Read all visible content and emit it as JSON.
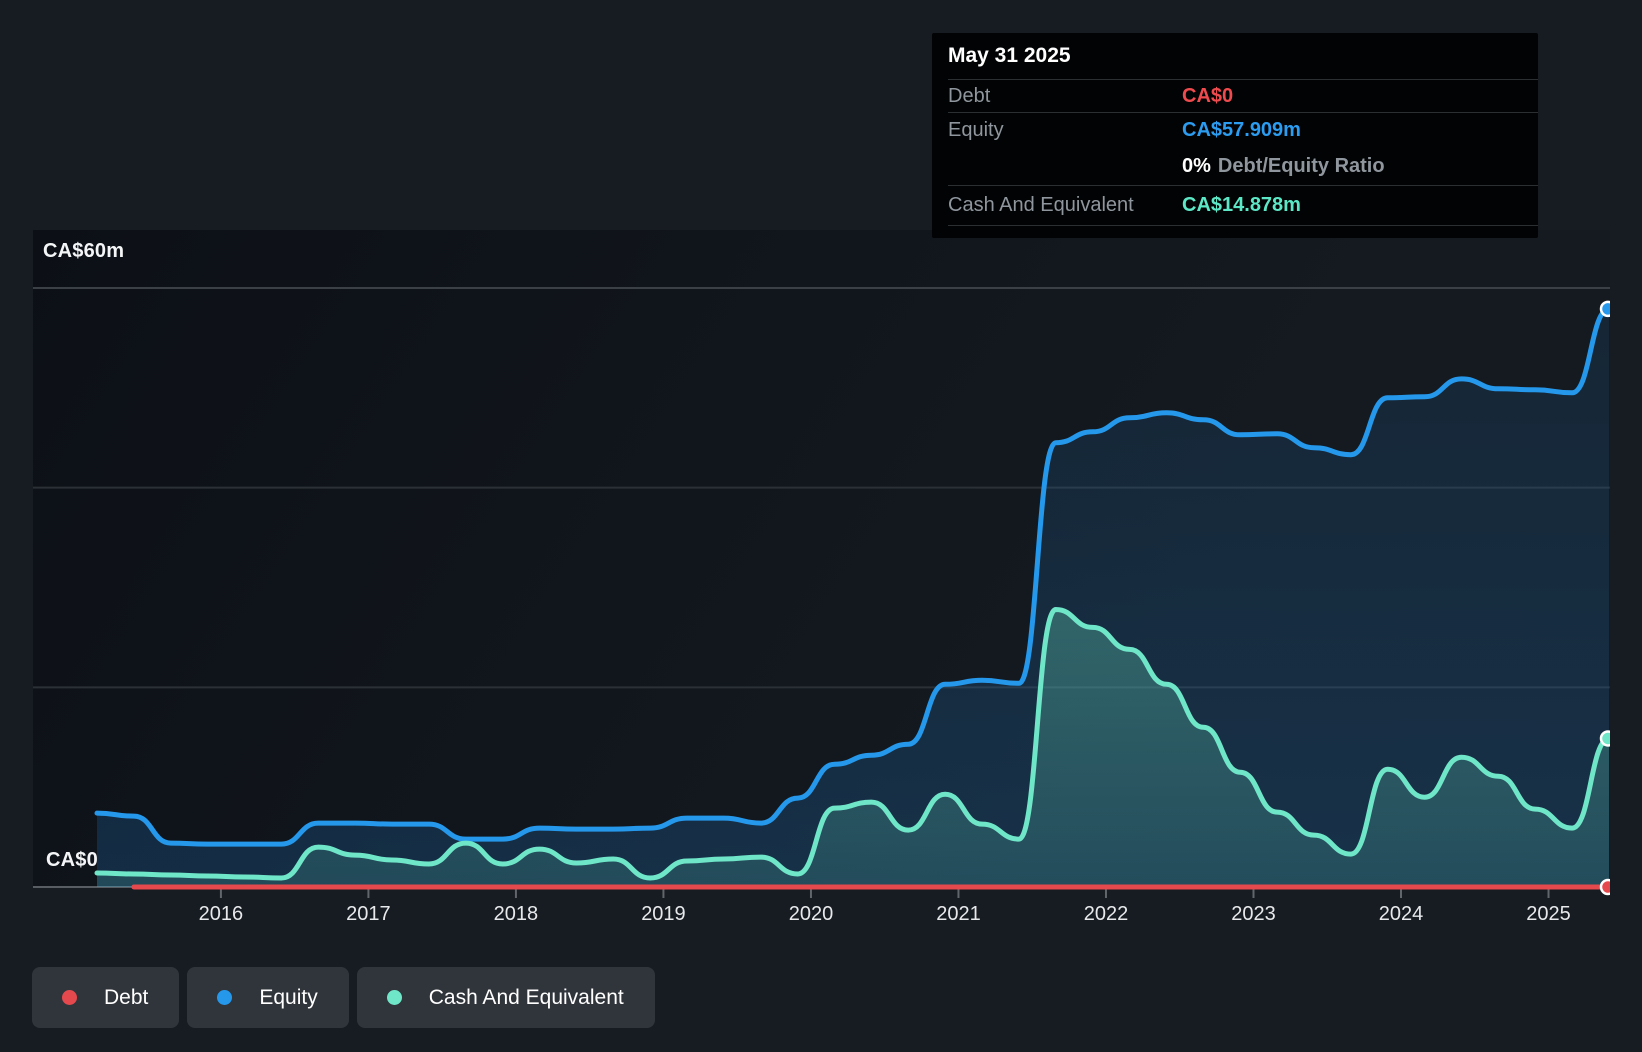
{
  "y_axis": {
    "top_label": "CA$60m",
    "zero_label": "CA$0"
  },
  "tooltip": {
    "date": "May 31 2025",
    "debt_label": "Debt",
    "debt_value": "CA$0",
    "equity_label": "Equity",
    "equity_value": "CA$57.909m",
    "ratio_value": "0%",
    "ratio_label": "Debt/Equity Ratio",
    "cash_label": "Cash And Equivalent",
    "cash_value": "CA$14.878m"
  },
  "legend": {
    "debt": "Debt",
    "equity": "Equity",
    "cash": "Cash And Equivalent"
  },
  "colors": {
    "debt": "#e5494e",
    "equity": "#2598ec",
    "cash": "#6fe6c8",
    "grid_major": "#3a4046",
    "grid_minor": "#2a3036",
    "axis": "#585d63",
    "tick": "#61666c"
  },
  "chart_data": {
    "type": "area",
    "title": "",
    "ylabel": "CA$ millions",
    "ylim": [
      0,
      60
    ],
    "gridlines_m": [
      20,
      40,
      60
    ],
    "x_tick_years": [
      2016,
      2017,
      2018,
      2019,
      2020,
      2021,
      2022,
      2023,
      2024,
      2025
    ],
    "x_domain_years": [
      2015.16,
      2025.41
    ],
    "note": "quarterly data, fiscal quarters ending Feb(.16) May(.41) Aug(.66) Nov(.91); last point May 31 2025",
    "series": [
      {
        "name": "Debt",
        "color": "#e5494e",
        "points": [
          [
            2015.41,
            0
          ],
          [
            2025.41,
            0
          ]
        ]
      },
      {
        "name": "Equity",
        "color": "#2598ec",
        "points": [
          [
            2015.16,
            7.4
          ],
          [
            2015.41,
            7.1
          ],
          [
            2015.66,
            4.4
          ],
          [
            2015.91,
            4.3
          ],
          [
            2016.16,
            4.3
          ],
          [
            2016.41,
            4.3
          ],
          [
            2016.66,
            6.4
          ],
          [
            2016.91,
            6.4
          ],
          [
            2017.16,
            6.3
          ],
          [
            2017.41,
            6.3
          ],
          [
            2017.66,
            4.8
          ],
          [
            2017.91,
            4.8
          ],
          [
            2018.16,
            5.9
          ],
          [
            2018.41,
            5.8
          ],
          [
            2018.66,
            5.8
          ],
          [
            2018.91,
            5.9
          ],
          [
            2019.16,
            6.9
          ],
          [
            2019.41,
            6.9
          ],
          [
            2019.66,
            6.4
          ],
          [
            2019.91,
            8.9
          ],
          [
            2020.16,
            12.3
          ],
          [
            2020.41,
            13.2
          ],
          [
            2020.66,
            14.3
          ],
          [
            2020.91,
            20.3
          ],
          [
            2021.16,
            20.7
          ],
          [
            2021.41,
            20.4
          ],
          [
            2021.66,
            44.5
          ],
          [
            2021.91,
            45.6
          ],
          [
            2022.16,
            47.0
          ],
          [
            2022.41,
            47.5
          ],
          [
            2022.66,
            46.8
          ],
          [
            2022.91,
            45.3
          ],
          [
            2023.16,
            45.4
          ],
          [
            2023.41,
            44.0
          ],
          [
            2023.66,
            43.3
          ],
          [
            2023.91,
            49.0
          ],
          [
            2024.16,
            49.1
          ],
          [
            2024.41,
            50.9
          ],
          [
            2024.66,
            49.9
          ],
          [
            2024.91,
            49.8
          ],
          [
            2025.16,
            49.5
          ],
          [
            2025.41,
            57.909
          ]
        ]
      },
      {
        "name": "Cash And Equivalent",
        "color": "#6fe6c8",
        "points": [
          [
            2015.16,
            1.4
          ],
          [
            2015.41,
            1.3
          ],
          [
            2015.66,
            1.2
          ],
          [
            2015.91,
            1.1
          ],
          [
            2016.16,
            1.0
          ],
          [
            2016.41,
            0.9
          ],
          [
            2016.66,
            4.0
          ],
          [
            2016.91,
            3.2
          ],
          [
            2017.16,
            2.7
          ],
          [
            2017.41,
            2.3
          ],
          [
            2017.66,
            4.4
          ],
          [
            2017.91,
            2.3
          ],
          [
            2018.16,
            3.8
          ],
          [
            2018.41,
            2.4
          ],
          [
            2018.66,
            2.8
          ],
          [
            2018.91,
            0.9
          ],
          [
            2019.16,
            2.6
          ],
          [
            2019.41,
            2.8
          ],
          [
            2019.66,
            3.0
          ],
          [
            2019.91,
            1.3
          ],
          [
            2020.16,
            7.9
          ],
          [
            2020.41,
            8.5
          ],
          [
            2020.66,
            5.7
          ],
          [
            2020.91,
            9.3
          ],
          [
            2021.16,
            6.3
          ],
          [
            2021.41,
            4.8
          ],
          [
            2021.66,
            27.8
          ],
          [
            2021.91,
            26.0
          ],
          [
            2022.16,
            23.8
          ],
          [
            2022.41,
            20.3
          ],
          [
            2022.66,
            16.0
          ],
          [
            2022.91,
            11.5
          ],
          [
            2023.16,
            7.5
          ],
          [
            2023.41,
            5.2
          ],
          [
            2023.66,
            3.3
          ],
          [
            2023.91,
            11.8
          ],
          [
            2024.16,
            9.0
          ],
          [
            2024.41,
            13.0
          ],
          [
            2024.66,
            11.1
          ],
          [
            2024.91,
            7.8
          ],
          [
            2025.16,
            5.9
          ],
          [
            2025.41,
            14.878
          ]
        ]
      }
    ],
    "legend_position": "bottom-left",
    "grid": true
  }
}
